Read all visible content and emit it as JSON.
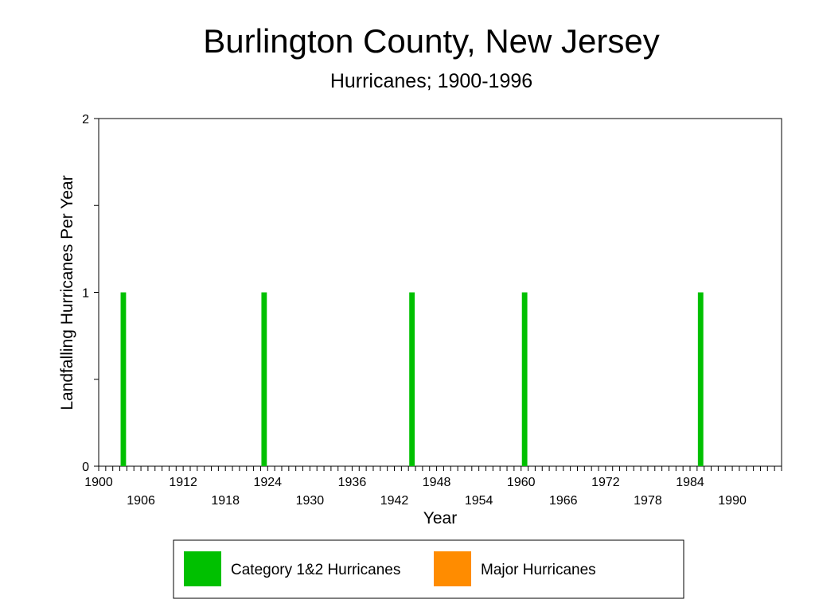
{
  "chart_data": {
    "type": "bar",
    "title": "Burlington County, New Jersey",
    "subtitle": "Hurricanes;  1900-1996",
    "xlabel": "Year",
    "ylabel": "Landfalling Hurricanes Per Year",
    "xlim": [
      1900,
      1996
    ],
    "ylim": [
      0,
      2
    ],
    "yticks": [
      {
        "value": 0,
        "label": "0"
      },
      {
        "value": 0.5,
        "label": ""
      },
      {
        "value": 1,
        "label": "1"
      },
      {
        "value": 1.5,
        "label": ""
      },
      {
        "value": 2,
        "label": "2"
      }
    ],
    "xtick_labels": [
      "1900",
      "1906",
      "1912",
      "1918",
      "1924",
      "1930",
      "1936",
      "1942",
      "1948",
      "1954",
      "1960",
      "1966",
      "1972",
      "1978",
      "1984",
      "1990"
    ],
    "series": [
      {
        "name": "Category 1&2 Hurricanes",
        "color": "#00c000",
        "points": [
          {
            "year": 1903,
            "value": 1
          },
          {
            "year": 1923,
            "value": 1
          },
          {
            "year": 1944,
            "value": 1
          },
          {
            "year": 1960,
            "value": 1
          },
          {
            "year": 1985,
            "value": 1
          }
        ]
      },
      {
        "name": "Major Hurricanes",
        "color": "#ff8c00",
        "points": []
      }
    ],
    "legend": "bottom",
    "grid": false
  }
}
